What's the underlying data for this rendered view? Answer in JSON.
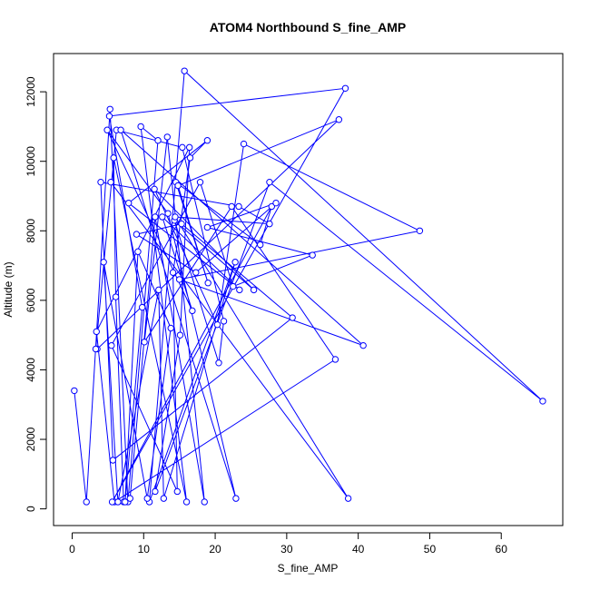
{
  "chart_data": {
    "type": "line",
    "title": "ATOM4 Northbound S_fine_AMP",
    "xlabel": "S_fine_AMP",
    "ylabel": "Altitude (m)",
    "xlim": [
      -2.6,
      68.6
    ],
    "ylim": [
      -480,
      13100
    ],
    "x_ticks": [
      0,
      10,
      20,
      30,
      40,
      50,
      60
    ],
    "y_ticks": [
      0,
      2000,
      4000,
      6000,
      8000,
      10000,
      12000
    ],
    "x_tick_labels": [
      "0",
      "10",
      "20",
      "30",
      "40",
      "50",
      "60"
    ],
    "y_tick_labels": [
      "0",
      "2000",
      "4000",
      "6000",
      "8000",
      "10000",
      "12000"
    ],
    "series_color": "#0000ff",
    "grid": false,
    "series": [
      {
        "x": [
          0.3,
          2.0,
          5.3,
          7.8,
          12.0,
          9.6,
          16.0,
          5.8,
          6.1,
          7.2,
          8.1,
          11.6,
          18.5,
          13.3,
          10.1,
          22.3,
          36.8,
          5.9,
          3.4,
          16.4,
          15.1,
          11.6,
          27.6,
          65.8,
          15.7,
          10.8,
          22.8,
          12.8,
          12.1,
          6.4,
          4.4,
          10.5,
          13.8,
          9.2,
          7.4,
          9.8,
          5.2,
          38.2,
          5.6,
          27.9,
          26.3,
          14.5,
          19.0,
          14.8,
          37.3,
          3.5,
          3.3,
          6.2,
          15.4,
          21.2,
          20.5,
          14.3,
          25.4,
          11.5,
          20.3,
          24.0,
          48.6,
          15.0,
          40.7,
          6.8,
          22.9,
          13.4,
          4.9,
          16.8,
          12.6,
          23.4,
          7.9,
          18.9,
          16.5,
          14.1,
          14.7,
          5.5,
          17.9,
          22.5,
          33.6,
          18.9,
          28.5,
          17.3,
          9.0,
          15.3,
          30.8,
          5.7,
          4.0,
          23.3,
          27.6,
          14.4,
          38.6,
          5.4
        ],
        "y": [
          3400,
          200,
          11500,
          200,
          10600,
          11000,
          200,
          10100,
          6100,
          200,
          300,
          8400,
          200,
          10700,
          4800,
          8700,
          4300,
          200,
          5100,
          10400,
          5000,
          500,
          9400,
          3100,
          12600,
          200,
          7100,
          300,
          6300,
          200,
          7100,
          300,
          5200,
          7400,
          200,
          5800,
          11300,
          12100,
          200,
          8700,
          7600,
          9400,
          6500,
          9300,
          11200,
          4600,
          4600,
          10900,
          10400,
          5400,
          4200,
          8300,
          6300,
          9200,
          5300,
          10500,
          8000,
          6600,
          4700,
          10900,
          300,
          8500,
          10900,
          5700,
          8400,
          6300,
          8800,
          10600,
          10100,
          6800,
          500,
          4700,
          9400,
          6400,
          7300,
          8100,
          8800,
          6800,
          7900,
          8200,
          5500,
          1400,
          9400,
          8700,
          8200,
          8400,
          300,
          9400
        ]
      }
    ]
  }
}
